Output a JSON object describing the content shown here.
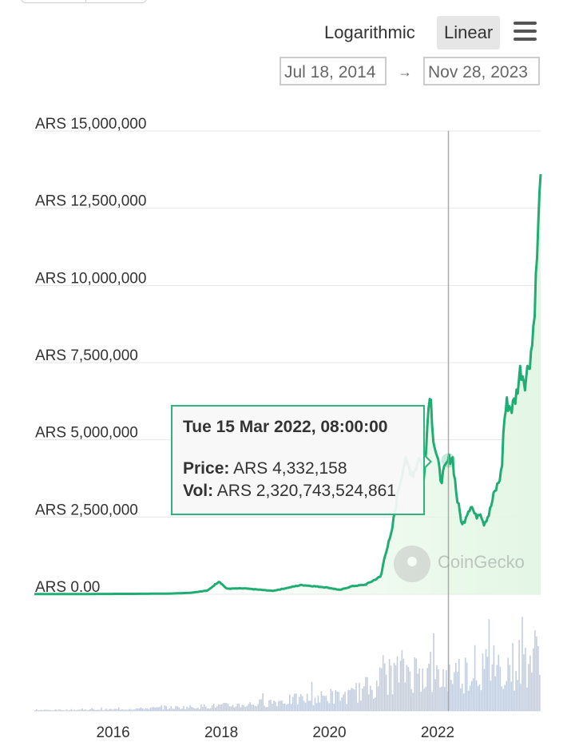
{
  "toolbar": {
    "scale_log_label": "Logarithmic",
    "scale_linear_label": "Linear",
    "active_scale": "Linear",
    "menu_icon": "hamburger-menu-icon"
  },
  "range": {
    "from": "Jul 18, 2014",
    "arrow": "→",
    "to": "Nov 28, 2023"
  },
  "tooltip": {
    "title": "Tue 15 Mar 2022, 08:00:00",
    "price_label": "Price:",
    "price_value": "ARS 4,332,158",
    "vol_label": "Vol:",
    "vol_value": "ARS 2,320,743,524,861"
  },
  "watermark": {
    "text": "CoinGecko",
    "icon": "coingecko-logo-icon"
  },
  "colors": {
    "line": "#1fad73",
    "area_fill": "#e3f6e4",
    "volume": "#c3cede",
    "tooltip_border": "#2fb57c",
    "grid": "#e6e6e6"
  },
  "chart_data": {
    "type": "line",
    "scale": "linear",
    "ylim": [
      0,
      15000000
    ],
    "y_ticks": [
      {
        "value": 15000000,
        "label": "ARS 15,000,000"
      },
      {
        "value": 12500000,
        "label": "ARS 12,500,000"
      },
      {
        "value": 10000000,
        "label": "ARS 10,000,000"
      },
      {
        "value": 7500000,
        "label": "ARS 7,500,000"
      },
      {
        "value": 5000000,
        "label": "ARS 5,000,000"
      },
      {
        "value": 2500000,
        "label": "ARS 2,500,000"
      },
      {
        "value": 0,
        "label": "ARS 0.00"
      }
    ],
    "x_range": [
      "2014-07-18",
      "2023-11-28"
    ],
    "x_ticks": [
      "2016",
      "2018",
      "2020",
      "2022"
    ],
    "grid": true,
    "crosshair_date": "2022-03-15",
    "price_series": {
      "x": [
        "2014-07-18",
        "2015-07-01",
        "2016-07-01",
        "2017-01-01",
        "2017-06-01",
        "2017-10-01",
        "2017-12-17",
        "2018-02-06",
        "2018-06-01",
        "2018-12-15",
        "2019-06-26",
        "2019-12-15",
        "2020-03-13",
        "2020-06-01",
        "2020-09-01",
        "2020-12-15",
        "2021-01-08",
        "2021-02-21",
        "2021-04-14",
        "2021-05-23",
        "2021-07-20",
        "2021-09-06",
        "2021-09-29",
        "2021-11-10",
        "2021-12-05",
        "2022-01-24",
        "2022-03-15",
        "2022-04-10",
        "2022-05-12",
        "2022-06-18",
        "2022-07-15",
        "2022-08-15",
        "2022-09-15",
        "2022-10-15",
        "2022-11-09",
        "2022-12-15",
        "2023-01-15",
        "2023-02-15",
        "2023-03-10",
        "2023-03-25",
        "2023-04-15",
        "2023-05-15",
        "2023-06-15",
        "2023-07-15",
        "2023-08-15",
        "2023-09-15",
        "2023-10-05",
        "2023-10-25",
        "2023-11-10",
        "2023-11-28"
      ],
      "y": [
        5000,
        8000,
        15000,
        20000,
        45000,
        120000,
        420000,
        180000,
        190000,
        110000,
        300000,
        220000,
        140000,
        260000,
        310000,
        580000,
        1250000,
        1900000,
        3500000,
        4300000,
        3900000,
        4500000,
        3700000,
        6700000,
        5000000,
        3700000,
        4332158,
        4500000,
        3100000,
        2200000,
        2600000,
        2900000,
        2500000,
        2700000,
        2300000,
        2600000,
        3200000,
        3600000,
        4000000,
        5600000,
        6200000,
        6000000,
        6400000,
        7300000,
        6900000,
        7600000,
        8200000,
        10000000,
        11600000,
        13600000
      ]
    },
    "volume_series": {
      "x": [
        "2014-07-18",
        "2016-01-01",
        "2017-06-01",
        "2018-06-01",
        "2019-06-01",
        "2020-06-01",
        "2021-02-01",
        "2021-06-01",
        "2022-01-01",
        "2022-06-01",
        "2023-01-01",
        "2023-06-01",
        "2023-11-28"
      ],
      "y": [
        0.01,
        0.02,
        0.05,
        0.08,
        0.15,
        0.2,
        0.45,
        0.55,
        0.42,
        0.5,
        0.55,
        0.6,
        0.75
      ]
    }
  }
}
